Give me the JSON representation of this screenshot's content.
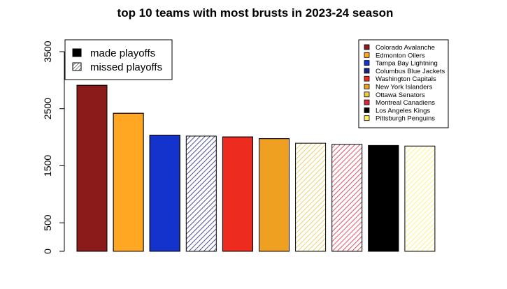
{
  "chart_data": {
    "type": "bar",
    "title": "top 10 teams with most brusts in 2023-24 season",
    "xlabel": "",
    "ylabel": "",
    "categories": [
      "Colorado Avalanche",
      "Edmonton Oilers",
      "Tampa Bay Lightning",
      "Columbus Blue Jackets",
      "Washington Capitals",
      "New York Islanders",
      "Ottawa Senators",
      "Montreal Canadiens",
      "Los Angeles Kings",
      "Pittsburgh Penguins"
    ],
    "values": [
      2910,
      2420,
      2035,
      2020,
      2005,
      1975,
      1895,
      1875,
      1855,
      1845
    ],
    "colors": [
      "#8B1A1A",
      "#FFA722",
      "#1433CC",
      "#1A237E",
      "#EE2B1F",
      "#F0A021",
      "#E8C94A",
      "#DC2838",
      "#000000",
      "#FFF066"
    ],
    "made_playoffs": [
      true,
      true,
      true,
      false,
      true,
      true,
      false,
      false,
      true,
      false
    ],
    "ylim": [
      0,
      3500
    ],
    "yticks": [
      0,
      500,
      1500,
      2500,
      3500
    ],
    "grid": false,
    "legend_status": {
      "position": "top-left",
      "entries": [
        {
          "label": "made playoffs",
          "style": "solid"
        },
        {
          "label": "missed playoffs",
          "style": "hatched"
        }
      ]
    },
    "legend_teams": {
      "position": "top-right"
    }
  }
}
